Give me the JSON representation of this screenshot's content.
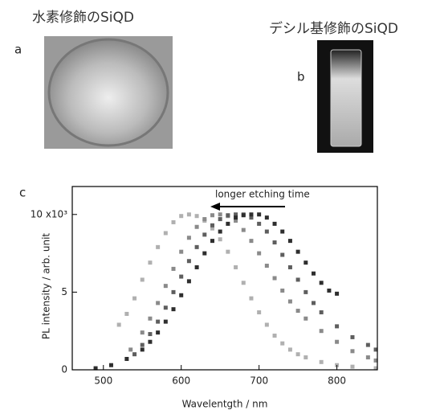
{
  "panels": [
    {
      "label": "a",
      "title": "水素修飾のSiQD"
    },
    {
      "label": "b",
      "title": "デシル基修飾のSiQD"
    }
  ],
  "chart_data": {
    "type": "scatter",
    "label": "c",
    "annotation": "longer etching time",
    "x_label": "Wavelentgth / nm",
    "y_label": "PL intensity / arb. unit",
    "xlim": [
      460,
      852
    ],
    "ylim": [
      0,
      11.8
    ],
    "xticks": [
      500,
      600,
      700,
      800
    ],
    "yticks": [
      0,
      5,
      {
        "value": 10,
        "label": "10 x10³"
      }
    ],
    "series": [
      {
        "color": "#b0b0b0",
        "x": [
          520,
          530,
          540,
          550,
          560,
          570,
          580,
          590,
          600,
          610,
          620,
          630,
          640,
          650,
          660,
          670,
          680,
          690,
          700,
          710,
          720,
          730,
          740,
          750,
          760,
          780,
          800,
          820,
          850
        ],
        "values": [
          2.9,
          3.6,
          4.6,
          5.8,
          6.9,
          7.9,
          8.8,
          9.5,
          9.9,
          10,
          9.9,
          9.6,
          9.1,
          8.4,
          7.6,
          6.6,
          5.6,
          4.6,
          3.7,
          2.9,
          2.2,
          1.7,
          1.3,
          1.0,
          0.8,
          0.5,
          0.3,
          0.2,
          0.1
        ]
      },
      {
        "color": "#8a8a8a",
        "x": [
          535,
          550,
          560,
          570,
          580,
          590,
          600,
          610,
          620,
          630,
          640,
          650,
          660,
          670,
          680,
          690,
          700,
          710,
          720,
          730,
          740,
          750,
          760,
          780,
          800,
          820,
          840,
          850
        ],
        "values": [
          1.3,
          2.4,
          3.3,
          4.3,
          5.4,
          6.5,
          7.6,
          8.5,
          9.2,
          9.7,
          9.95,
          10,
          9.9,
          9.6,
          9.0,
          8.3,
          7.5,
          6.7,
          5.9,
          5.1,
          4.4,
          3.8,
          3.3,
          2.5,
          1.8,
          1.2,
          0.8,
          0.6
        ]
      },
      {
        "color": "#5e5e5e",
        "x": [
          540,
          550,
          560,
          570,
          580,
          590,
          600,
          610,
          620,
          630,
          640,
          650,
          660,
          670,
          680,
          690,
          700,
          710,
          720,
          730,
          740,
          750,
          760,
          770,
          780,
          800,
          820,
          840,
          850
        ],
        "values": [
          1.0,
          1.6,
          2.3,
          3.1,
          4.0,
          5.0,
          6.0,
          7.0,
          7.9,
          8.7,
          9.3,
          9.7,
          9.95,
          10,
          10,
          9.8,
          9.4,
          8.9,
          8.2,
          7.4,
          6.6,
          5.8,
          5.0,
          4.3,
          3.7,
          2.8,
          2.1,
          1.6,
          1.3
        ]
      },
      {
        "color": "#2e2e2e",
        "x": [
          490,
          510,
          530,
          550,
          560,
          570,
          580,
          590,
          600,
          610,
          620,
          630,
          640,
          650,
          660,
          670,
          680,
          690,
          700,
          710,
          720,
          730,
          740,
          750,
          760,
          770,
          780,
          790,
          800
        ],
        "values": [
          0.1,
          0.3,
          0.7,
          1.3,
          1.8,
          2.4,
          3.1,
          3.9,
          4.8,
          5.7,
          6.6,
          7.5,
          8.3,
          8.9,
          9.4,
          9.8,
          9.95,
          10,
          10,
          9.8,
          9.4,
          8.9,
          8.3,
          7.6,
          6.9,
          6.2,
          5.6,
          5.1,
          4.9
        ]
      }
    ]
  }
}
